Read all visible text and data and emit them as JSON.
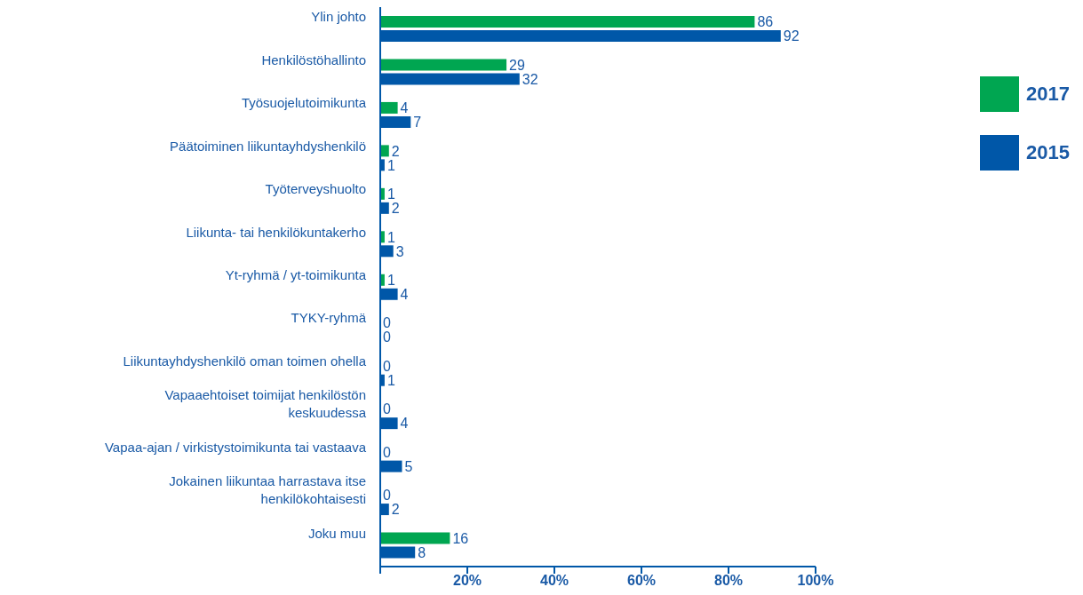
{
  "chart_data": {
    "type": "bar",
    "orientation": "horizontal",
    "categories": [
      "Ylin johto",
      "Henkilöstöhallinto",
      "Työsuojelutoimikunta",
      "Päätoiminen liikuntayhdyshenkilö",
      "Työterveyshuolto",
      "Liikunta- tai henkilökuntakerho",
      "Yt-ryhmä / yt-toimikunta",
      "TYKY-ryhmä",
      "Liikuntayhdyshenkilö oman toimen ohella",
      "Vapaaehtoiset toimijat henkilöstön keskuudessa",
      "Vapaa-ajan / virkistystoimikunta tai vastaava",
      "Jokainen liikuntaa harrastava itse henkilökohtaisesti",
      "Joku muu"
    ],
    "series": [
      {
        "name": "2017",
        "color": "#00a651",
        "values": [
          86,
          29,
          4,
          2,
          1,
          1,
          1,
          0,
          0,
          0,
          0,
          0,
          16
        ]
      },
      {
        "name": "2015",
        "color": "#0057a8",
        "values": [
          92,
          32,
          7,
          1,
          2,
          3,
          4,
          0,
          1,
          4,
          5,
          2,
          8
        ]
      }
    ],
    "xlim": [
      0,
      100
    ],
    "xticks": [
      {
        "value": 0,
        "label": null
      },
      {
        "value": 20,
        "label": "20%"
      },
      {
        "value": 40,
        "label": "40%"
      },
      {
        "value": 60,
        "label": "60%"
      },
      {
        "value": 80,
        "label": "80%"
      },
      {
        "value": 100,
        "label": "100%"
      }
    ],
    "data_labels": true,
    "legend": "top right",
    "grid": false
  }
}
